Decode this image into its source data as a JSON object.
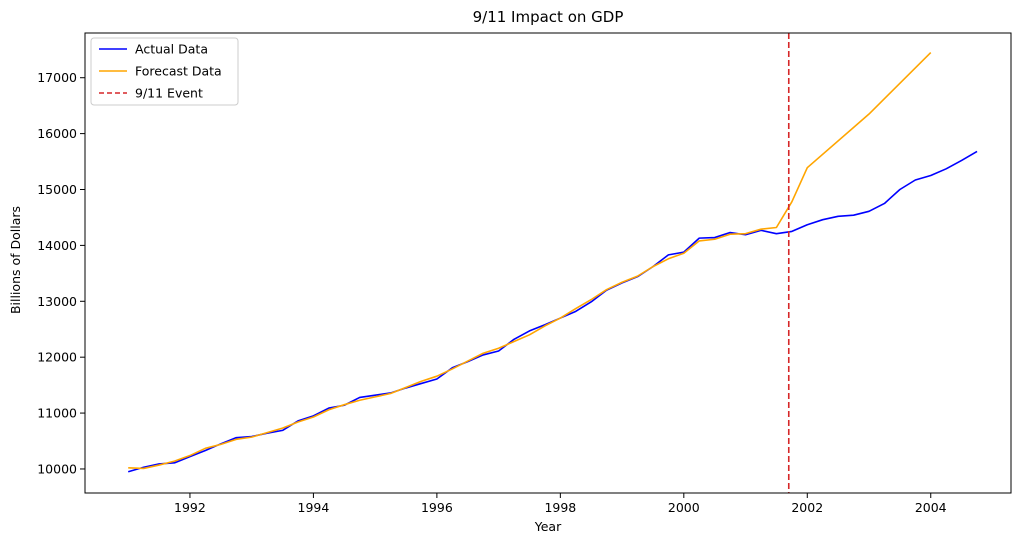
{
  "chart_data": {
    "type": "line",
    "title": "9/11 Impact on GDP",
    "xlabel": "Year",
    "ylabel": "Billions of Dollars",
    "xlim": [
      1990.3,
      2005.3
    ],
    "ylim": [
      9570,
      17800
    ],
    "x_ticks": [
      1992,
      1994,
      1996,
      1998,
      2000,
      2002,
      2004
    ],
    "y_ticks": [
      10000,
      11000,
      12000,
      13000,
      14000,
      15000,
      16000,
      17000
    ],
    "grid": false,
    "legend_position": "top-left",
    "event": {
      "name": "9/11 Event",
      "x": 2001.7,
      "color": "#d62728",
      "style": "dashed"
    },
    "series": [
      {
        "name": "Actual Data",
        "color": "#0000ff",
        "x": [
          1991.0,
          1991.25,
          1991.5,
          1991.75,
          1992.0,
          1992.25,
          1992.5,
          1992.75,
          1993.0,
          1993.25,
          1993.5,
          1993.75,
          1994.0,
          1994.25,
          1994.5,
          1994.75,
          1995.0,
          1995.25,
          1995.5,
          1995.75,
          1996.0,
          1996.25,
          1996.5,
          1996.75,
          1997.0,
          1997.25,
          1997.5,
          1997.75,
          1998.0,
          1998.25,
          1998.5,
          1998.75,
          1999.0,
          1999.25,
          1999.5,
          1999.75,
          2000.0,
          2000.25,
          2000.5,
          2000.75,
          2001.0,
          2001.25,
          2001.5,
          2001.75,
          2002.0,
          2002.25,
          2002.5,
          2002.75,
          2003.0,
          2003.25,
          2003.5,
          2003.75,
          2004.0,
          2004.25,
          2004.5,
          2004.75
        ],
        "values": [
          9950,
          10030,
          10090,
          10110,
          10220,
          10330,
          10450,
          10560,
          10580,
          10640,
          10690,
          10860,
          10950,
          11090,
          11140,
          11280,
          11320,
          11360,
          11450,
          11530,
          11610,
          11810,
          11920,
          12040,
          12110,
          12320,
          12470,
          12580,
          12700,
          12820,
          12990,
          13200,
          13330,
          13440,
          13620,
          13830,
          13880,
          14130,
          14140,
          14230,
          14190,
          14270,
          14210,
          14250,
          14370,
          14460,
          14520,
          14540,
          14610,
          14750,
          15000,
          15170,
          15250,
          15370,
          15520,
          15680
        ]
      },
      {
        "name": "Forecast Data",
        "color": "#ffa500",
        "x": [
          1991.0,
          1991.25,
          1991.5,
          1991.75,
          1992.0,
          1992.25,
          1992.5,
          1992.75,
          1993.0,
          1993.25,
          1993.5,
          1993.75,
          1994.0,
          1994.25,
          1994.5,
          1994.75,
          1995.0,
          1995.25,
          1995.5,
          1995.75,
          1996.0,
          1996.25,
          1996.5,
          1996.75,
          1997.0,
          1997.25,
          1997.5,
          1997.75,
          1998.0,
          1998.25,
          1998.5,
          1998.75,
          1999.0,
          1999.25,
          1999.5,
          1999.75,
          2000.0,
          2000.25,
          2000.5,
          2000.75,
          2001.0,
          2001.25,
          2001.5,
          2001.75,
          2002.0,
          2003.0,
          2004.0
        ],
        "values": [
          10020,
          10010,
          10070,
          10140,
          10240,
          10370,
          10440,
          10530,
          10570,
          10650,
          10730,
          10840,
          10930,
          11060,
          11150,
          11230,
          11290,
          11350,
          11460,
          11570,
          11660,
          11790,
          11930,
          12070,
          12160,
          12280,
          12400,
          12560,
          12700,
          12870,
          13030,
          13210,
          13340,
          13450,
          13620,
          13760,
          13860,
          14080,
          14110,
          14200,
          14210,
          14290,
          14320,
          14780,
          15390,
          16350,
          17450
        ]
      }
    ]
  }
}
